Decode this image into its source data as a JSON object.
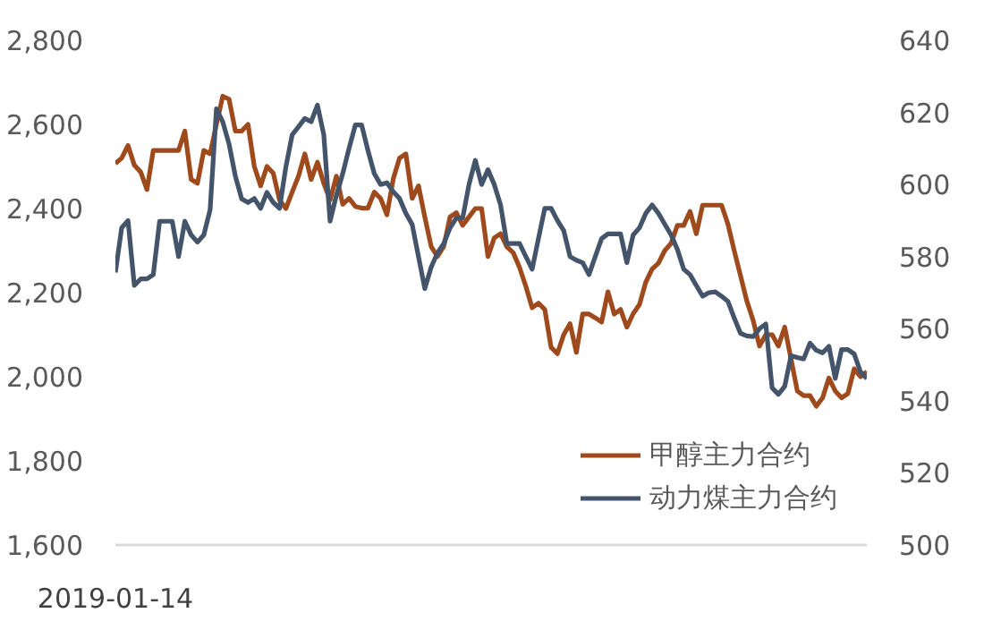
{
  "chart_data": {
    "type": "line",
    "categories": [
      "2019-01-14",
      null,
      null,
      null,
      null,
      null,
      null,
      null,
      null,
      null,
      null,
      null,
      null,
      null,
      null,
      null,
      null,
      null,
      null,
      null,
      null,
      null,
      null,
      null,
      null,
      null,
      null,
      null,
      null,
      null,
      null,
      null,
      null,
      null,
      null,
      null,
      null,
      null,
      null,
      null,
      null,
      null,
      null,
      null,
      null,
      null,
      null,
      null,
      null,
      null,
      null,
      null,
      null,
      null,
      null,
      null,
      null,
      null,
      null,
      null,
      null,
      null,
      null,
      null,
      null,
      null,
      null,
      null,
      null,
      null,
      null,
      null,
      null,
      null,
      null,
      null,
      null,
      null,
      null,
      null,
      null,
      null,
      null,
      null,
      null,
      null,
      null,
      null,
      null,
      null,
      null,
      null,
      null,
      null,
      null,
      null,
      null,
      null,
      null,
      null,
      null,
      null,
      null,
      null,
      null,
      null,
      null,
      null,
      null,
      null,
      null,
      null,
      null,
      null,
      null,
      null,
      null,
      null,
      null,
      null
    ],
    "series": [
      {
        "name": "甲醇主力合约",
        "color": "#9e4a1c",
        "values": [
          2507,
          2520,
          2550,
          2503,
          2487,
          2445,
          2538,
          2538,
          2538,
          2538,
          2538,
          2584,
          2469,
          2460,
          2538,
          2530,
          2600,
          2667,
          2660,
          2584,
          2584,
          2600,
          2500,
          2454,
          2500,
          2484,
          2420,
          2400,
          2439,
          2477,
          2530,
          2469,
          2510,
          2460,
          2420,
          2477,
          2410,
          2424,
          2405,
          2401,
          2401,
          2439,
          2424,
          2385,
          2470,
          2520,
          2530,
          2424,
          2454,
          2380,
          2310,
          2286,
          2310,
          2380,
          2390,
          2360,
          2380,
          2400,
          2400,
          2286,
          2330,
          2340,
          2309,
          2295,
          2260,
          2215,
          2164,
          2175,
          2160,
          2070,
          2055,
          2100,
          2126,
          2058,
          2149,
          2149,
          2140,
          2130,
          2202,
          2149,
          2160,
          2118,
          2150,
          2172,
          2225,
          2256,
          2270,
          2300,
          2317,
          2360,
          2360,
          2393,
          2340,
          2408,
          2408,
          2408,
          2408,
          2363,
          2300,
          2240,
          2180,
          2134,
          2073,
          2100,
          2100,
          2073,
          2118,
          2042,
          1966,
          1955,
          1955,
          1930,
          1950,
          1997,
          1966,
          1950,
          1960,
          2019,
          2000,
          2012
        ]
      },
      {
        "name": "动力煤主力合约",
        "color": "#44546a",
        "axis": "y2",
        "values": [
          575.6,
          588,
          590,
          572,
          573.8,
          573.8,
          575,
          589.8,
          589.8,
          589.8,
          580,
          589.8,
          586,
          584,
          586,
          593,
          621,
          617.4,
          611.2,
          602.3,
          596,
          595,
          596.1,
          593.4,
          597.8,
          595,
          593.4,
          604.9,
          613.8,
          616,
          618.3,
          617.4,
          622,
          613.8,
          589.8,
          597,
          603,
          610,
          616.5,
          616.5,
          609.4,
          603,
          600,
          600.5,
          598,
          596.1,
          592,
          588.9,
          580,
          571.1,
          577,
          581,
          583.6,
          588,
          590.7,
          590.7,
          600,
          606.7,
          600,
          604.1,
          600,
          594.3,
          583.6,
          583.6,
          583.6,
          580,
          576.5,
          585,
          593.4,
          593.4,
          590,
          587.2,
          580,
          579,
          578.3,
          575,
          580,
          585,
          586.3,
          586.3,
          586.3,
          578.3,
          586,
          588,
          592,
          594.3,
          592,
          589,
          586,
          582,
          576.5,
          575,
          572,
          569,
          570,
          570.2,
          569,
          567.6,
          563,
          558.7,
          558,
          557.8,
          560,
          561.3,
          543.6,
          541.8,
          544,
          552.5,
          552,
          551.6,
          556,
          554,
          553.3,
          555.1,
          546.2,
          554.2,
          554.2,
          553,
          548,
          546.2
        ]
      }
    ],
    "ylim": [
      1600,
      2800
    ],
    "yticks": [
      {
        "value": 1600,
        "label": "1,600"
      },
      {
        "value": 1800,
        "label": "1,800"
      },
      {
        "value": 2000,
        "label": "2,000"
      },
      {
        "value": 2200,
        "label": "2,200"
      },
      {
        "value": 2400,
        "label": "2,400"
      },
      {
        "value": 2600,
        "label": "2,600"
      },
      {
        "value": 2800,
        "label": "2,800"
      }
    ],
    "y2lim": [
      500,
      640
    ],
    "y2ticks": [
      500,
      520,
      540,
      560,
      580,
      600,
      620,
      640
    ],
    "grid": false,
    "legend": "bottom right"
  }
}
